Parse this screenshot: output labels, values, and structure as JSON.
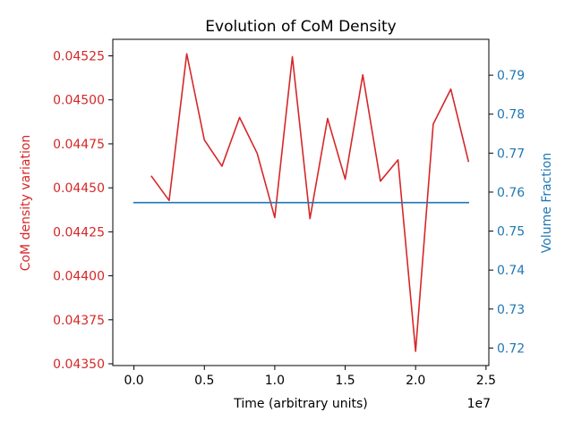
{
  "chart_data": {
    "type": "line",
    "title": "Evolution of CoM Density",
    "xlabel": "Time (arbitrary units)",
    "x_offset_label": "1e7",
    "x_exponent": 7,
    "xlim": [
      -1500000,
      25200000
    ],
    "x_ticks": [
      0,
      5000000,
      10000000,
      15000000,
      20000000,
      25000000
    ],
    "x_tick_labels": [
      "0.0",
      "0.5",
      "1.0",
      "1.5",
      "2.0",
      "2.5"
    ],
    "y_left": {
      "label": "CoM density variation",
      "color": "#d62728",
      "lim": [
        0.04349,
        0.045344
      ],
      "ticks": [
        0.0435,
        0.04375,
        0.044,
        0.04425,
        0.0445,
        0.04475,
        0.045,
        0.04525
      ],
      "tick_labels": [
        "0.04350",
        "0.04375",
        "0.04400",
        "0.04425",
        "0.04450",
        "0.04475",
        "0.04500",
        "0.04525"
      ]
    },
    "y_right": {
      "label": "Volume Fraction",
      "color": "#1f77b4",
      "lim": [
        0.7155,
        0.7992
      ],
      "ticks": [
        0.72,
        0.73,
        0.74,
        0.75,
        0.76,
        0.77,
        0.78,
        0.79
      ],
      "tick_labels": [
        "0.72",
        "0.73",
        "0.74",
        "0.75",
        "0.76",
        "0.77",
        "0.78",
        "0.79"
      ]
    },
    "series": [
      {
        "axis": "left",
        "color": "#d62728",
        "x": [
          1250000,
          2500000,
          3750000,
          5000000,
          6250000,
          7500000,
          8750000,
          10000000,
          11250000,
          12500000,
          13750000,
          15000000,
          16250000,
          17500000,
          18750000,
          20000000,
          21250000,
          22500000,
          23750000
        ],
        "y": [
          0.044565,
          0.044428,
          0.045262,
          0.044772,
          0.044623,
          0.0449,
          0.044696,
          0.044331,
          0.045245,
          0.044325,
          0.044894,
          0.044549,
          0.045142,
          0.044538,
          0.044659,
          0.043571,
          0.044862,
          0.045061,
          0.044651
        ]
      },
      {
        "axis": "right",
        "color": "#1f77b4",
        "x": [
          0,
          23750000
        ],
        "y": [
          0.7573,
          0.7573
        ]
      }
    ]
  }
}
